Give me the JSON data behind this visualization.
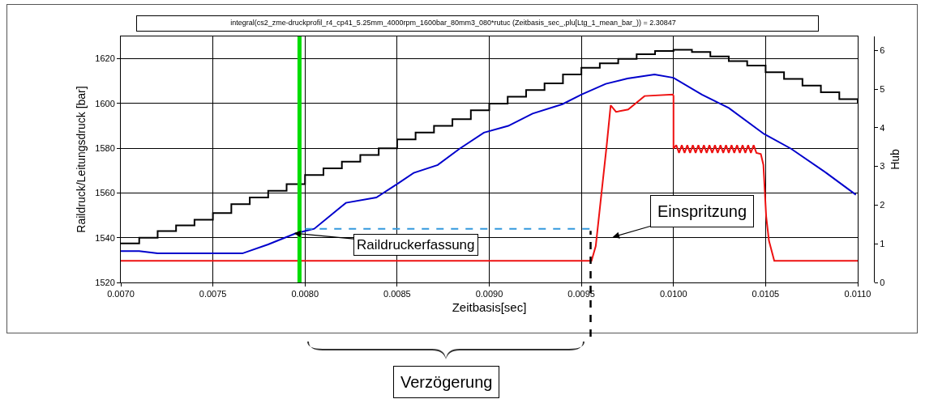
{
  "chart_data": {
    "type": "line",
    "title": "integral(cs2_zme-druckprofil_r4_cp41_5.25mm_4000rpm_1600bar_80mm3_080*rutuc (Zeitbasis_sec_,plu[Ltg_1_mean_bar_)) = 2.30847",
    "xlabel": "Zeitbasis[sec]",
    "ylabel": "Raildruck/Leitungsdruck [bar]",
    "y2label": "Hub",
    "annotations": [
      {
        "text": "Raildruckerfassung",
        "x": 0.00794,
        "y": 1542
      },
      "Einspritzung",
      "Verzögerung"
    ],
    "xlim": [
      0.007,
      0.011
    ],
    "xticks": [
      {
        "value": 0.007,
        "label": "0.0070"
      },
      {
        "value": 0.0075,
        "label": "0.0075"
      },
      {
        "value": 0.008,
        "label": "0.0080"
      },
      {
        "value": 0.0085,
        "label": "0.0085"
      },
      {
        "value": 0.009,
        "label": "0.0090"
      },
      {
        "value": 0.0095,
        "label": "0.0095"
      },
      {
        "value": 0.01,
        "label": "0.0100"
      },
      {
        "value": 0.0105,
        "label": "0.0105"
      },
      {
        "value": 0.011,
        "label": "0.0110"
      }
    ],
    "ylim": [
      1520,
      1630
    ],
    "yticks": [
      1520,
      1540,
      1560,
      1580,
      1600,
      1620
    ],
    "y2lim": [
      0,
      6.36
    ],
    "y2ticks": [
      0,
      1,
      2,
      3,
      4,
      5,
      6
    ],
    "grid": true,
    "marker": "none",
    "ref_lines": [
      {
        "axis": "x",
        "value": 0.00797,
        "color": "#00dd00",
        "line_style": "solid"
      },
      {
        "axis": "x",
        "value": 0.00955,
        "color": "#000000",
        "line_style": "dashed"
      }
    ],
    "series": [
      {
        "type": "step",
        "color": "#000000",
        "line_style": "solid",
        "x": [
          0.007,
          0.0071,
          0.0072,
          0.0073,
          0.0074,
          0.0075,
          0.0076,
          0.0077,
          0.0078,
          0.0079,
          0.008,
          0.0081,
          0.0082,
          0.0083,
          0.0084,
          0.0085,
          0.0086,
          0.0087,
          0.0088,
          0.0089,
          0.009,
          0.0091,
          0.0092,
          0.0093,
          0.0094,
          0.0095,
          0.0096,
          0.0097,
          0.0098,
          0.0099,
          0.01,
          0.0101,
          0.0102,
          0.0103,
          0.0104,
          0.0105,
          0.0106,
          0.0107,
          0.0108,
          0.0109,
          0.011
        ],
        "values": [
          1537.5,
          1540,
          1543,
          1545.5,
          1548,
          1551,
          1555,
          1558,
          1561,
          1564,
          1568,
          1571,
          1574,
          1577,
          1580,
          1584,
          1587,
          1590,
          1593,
          1597,
          1600,
          1603,
          1606,
          1609,
          1613,
          1616,
          1618,
          1620,
          1622,
          1623.5,
          1624,
          1623,
          1621,
          1619,
          1617,
          1614,
          1611,
          1608,
          1605,
          1602,
          1600
        ]
      },
      {
        "type": "line",
        "color": "#0000cc",
        "line_style": "solid",
        "x": [
          0.007,
          0.0071,
          0.0072,
          0.0075,
          0.00766,
          0.0078,
          0.00795,
          0.008,
          0.00805,
          0.008222,
          0.008387,
          0.0085,
          0.00859,
          0.00872,
          0.008839,
          0.008971,
          0.009103,
          0.009235,
          0.009397,
          0.0095,
          0.009632,
          0.00975,
          0.009897,
          0.01,
          0.010154,
          0.0103,
          0.010491,
          0.010638,
          0.010829,
          0.01099
        ],
        "values": [
          1534,
          1534,
          1533,
          1533,
          1533,
          1537,
          1542,
          1543,
          1544,
          1555.6,
          1558,
          1564,
          1569,
          1572.5,
          1579.8,
          1587,
          1590,
          1595.5,
          1599.7,
          1604,
          1608.8,
          1611.2,
          1613,
          1611.5,
          1604,
          1598,
          1586.4,
          1579.8,
          1569,
          1559.2
        ]
      },
      {
        "type": "line",
        "color": "#3399dd",
        "line_style": "dashed",
        "x": [
          0.008,
          0.00955
        ],
        "values": [
          1544,
          1544
        ]
      },
      {
        "type": "line",
        "color": "#ee1111",
        "line_style": "solid",
        "axis": "y2",
        "x": [
          0.007,
          0.009555,
          0.009578,
          0.009637,
          0.009659,
          0.009688,
          0.009754,
          0.009843,
          0.009997,
          0.01,
          0.01,
          0.010015,
          0.01003,
          0.010045,
          0.01006,
          0.010075,
          0.01009,
          0.010105,
          0.01012,
          0.010135,
          0.01015,
          0.010165,
          0.01018,
          0.010195,
          0.01021,
          0.010225,
          0.01024,
          0.010255,
          0.01027,
          0.010285,
          0.0103,
          0.010315,
          0.01033,
          0.010345,
          0.01036,
          0.010375,
          0.01039,
          0.010405,
          0.01042,
          0.010435,
          0.01045,
          0.010474,
          0.010488,
          0.010503,
          0.010518,
          0.010547,
          0.011
        ],
        "values": [
          0.56,
          0.56,
          0.94,
          3.53,
          4.58,
          4.41,
          4.47,
          4.82,
          4.86,
          4.82,
          3.46,
          3.55,
          3.35,
          3.55,
          3.35,
          3.55,
          3.35,
          3.55,
          3.35,
          3.55,
          3.35,
          3.55,
          3.35,
          3.55,
          3.35,
          3.55,
          3.35,
          3.55,
          3.35,
          3.55,
          3.35,
          3.55,
          3.35,
          3.55,
          3.35,
          3.55,
          3.35,
          3.55,
          3.35,
          3.55,
          3.35,
          3.32,
          3.04,
          1.71,
          1.08,
          0.56,
          0.56
        ]
      }
    ]
  }
}
